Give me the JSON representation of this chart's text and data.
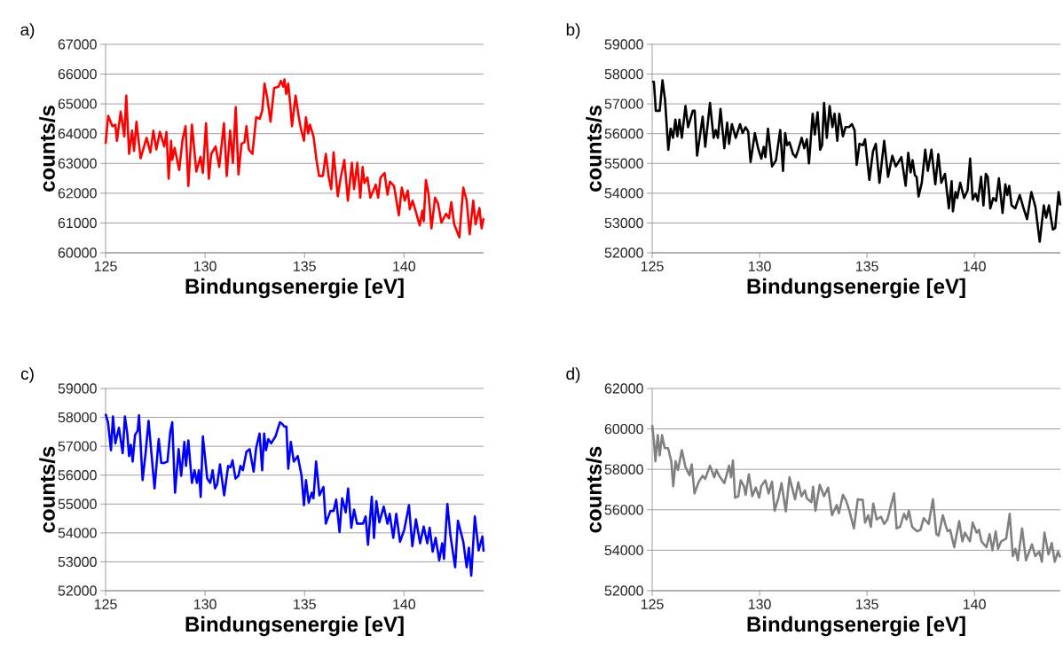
{
  "chart_data": [
    {
      "type": "line",
      "title": "a)",
      "xlabel": "Bindungsenergie [eV]",
      "ylabel": "counts/s",
      "color": "#ff0000",
      "grid": "y",
      "xlim": [
        125,
        144
      ],
      "xticks": [
        125,
        130,
        135,
        140
      ],
      "ylim": [
        60000,
        67000
      ],
      "yticks": [
        60000,
        61000,
        62000,
        63000,
        64000,
        65000,
        66000,
        67000
      ],
      "x": [
        125.0,
        125.13,
        125.34,
        125.49,
        125.57,
        125.76,
        125.94,
        126.04,
        126.18,
        126.33,
        126.43,
        126.55,
        126.76,
        127.06,
        127.25,
        127.4,
        127.55,
        127.73,
        127.95,
        128.06,
        128.17,
        128.29,
        128.35,
        128.47,
        128.7,
        128.87,
        129.02,
        129.16,
        129.34,
        129.56,
        129.77,
        129.89,
        130.05,
        130.19,
        130.31,
        130.53,
        130.71,
        130.95,
        131.09,
        131.26,
        131.4,
        131.54,
        131.68,
        131.83,
        131.98,
        132.08,
        132.2,
        132.38,
        132.57,
        132.75,
        132.88,
        132.99,
        133.12,
        133.29,
        133.47,
        133.69,
        133.81,
        133.93,
        133.99,
        134.08,
        134.18,
        134.28,
        134.37,
        134.55,
        134.7,
        134.79,
        134.97,
        135.07,
        135.18,
        135.27,
        135.45,
        135.6,
        135.73,
        135.92,
        136.07,
        136.22,
        136.34,
        136.46,
        136.67,
        136.82,
        137.0,
        137.18,
        137.38,
        137.49,
        137.65,
        137.8,
        137.92,
        138.01,
        138.16,
        138.31,
        138.58,
        138.7,
        138.82,
        139.02,
        139.17,
        139.29,
        139.5,
        139.74,
        139.89,
        140.04,
        140.19,
        140.29,
        140.43,
        140.58,
        140.79,
        140.92,
        140.99,
        141.1,
        141.23,
        141.38,
        141.56,
        141.71,
        141.88,
        142.11,
        142.26,
        142.38,
        142.52,
        142.78,
        142.98,
        143.15,
        143.3,
        143.48,
        143.6,
        143.79,
        143.9,
        144.0
      ],
      "values": [
        63660,
        64600,
        64250,
        64300,
        63760,
        64740,
        63910,
        65280,
        63320,
        64100,
        63420,
        64400,
        63170,
        63860,
        63370,
        64100,
        63470,
        64060,
        63570,
        64060,
        62490,
        63760,
        63120,
        63520,
        62780,
        63810,
        64250,
        62240,
        64300,
        62730,
        63220,
        62680,
        64350,
        62490,
        63320,
        63570,
        62880,
        64350,
        62580,
        64100,
        63020,
        64890,
        62630,
        63660,
        63710,
        64250,
        63470,
        63320,
        64550,
        64500,
        64790,
        65680,
        65230,
        64400,
        65530,
        65580,
        65770,
        65580,
        65820,
        65330,
        65680,
        64990,
        64250,
        65280,
        64600,
        64250,
        63760,
        64550,
        64010,
        64300,
        63910,
        63120,
        62580,
        62580,
        63320,
        62530,
        62140,
        63370,
        61900,
        62530,
        63120,
        61750,
        63020,
        62140,
        63020,
        61850,
        62880,
        62340,
        62530,
        61850,
        62290,
        61850,
        62530,
        62680,
        61950,
        62390,
        62240,
        61260,
        62190,
        61750,
        62090,
        61460,
        61750,
        61410,
        60920,
        61410,
        61060,
        62440,
        61990,
        60820,
        61850,
        61650,
        61010,
        61310,
        61160,
        61700,
        60960,
        60520,
        62190,
        61750,
        60620,
        61750,
        60960,
        61500,
        60820,
        61160
      ]
    },
    {
      "type": "line",
      "title": "b)",
      "xlabel": "Bindungsenergie [eV]",
      "ylabel": "counts/s",
      "color": "#000000",
      "grid": "y",
      "xlim": [
        125,
        144
      ],
      "xticks": [
        125,
        130,
        135,
        140
      ],
      "ylim": [
        52000,
        59000
      ],
      "yticks": [
        52000,
        53000,
        54000,
        55000,
        56000,
        57000,
        58000,
        59000
      ],
      "x": [
        125.0,
        125.08,
        125.17,
        125.35,
        125.48,
        125.6,
        125.75,
        125.86,
        125.97,
        126.08,
        126.17,
        126.27,
        126.38,
        126.55,
        126.67,
        126.89,
        126.98,
        127.09,
        127.35,
        127.47,
        127.69,
        127.86,
        127.96,
        128.06,
        128.18,
        128.36,
        128.49,
        128.58,
        128.71,
        128.89,
        129.09,
        129.21,
        129.35,
        129.47,
        129.58,
        129.78,
        129.93,
        130.08,
        130.19,
        130.27,
        130.39,
        130.58,
        130.76,
        130.96,
        131.09,
        131.19,
        131.28,
        131.39,
        131.56,
        131.68,
        131.8,
        131.96,
        132.08,
        132.2,
        132.3,
        132.47,
        132.57,
        132.7,
        132.82,
        132.91,
        133.0,
        133.13,
        133.26,
        133.39,
        133.49,
        133.62,
        133.71,
        133.88,
        134.0,
        134.16,
        134.3,
        134.42,
        134.52,
        134.65,
        134.81,
        134.91,
        135.11,
        135.28,
        135.41,
        135.58,
        135.8,
        135.98,
        136.18,
        136.34,
        136.6,
        136.8,
        136.92,
        137.03,
        137.12,
        137.23,
        137.31,
        137.4,
        137.55,
        137.71,
        137.83,
        138.0,
        138.18,
        138.32,
        138.46,
        138.63,
        138.81,
        138.94,
        139.0,
        139.12,
        139.2,
        139.34,
        139.52,
        139.68,
        139.8,
        139.92,
        140.05,
        140.16,
        140.31,
        140.42,
        140.53,
        140.62,
        140.74,
        140.88,
        141.01,
        141.14,
        141.31,
        141.44,
        141.53,
        141.62,
        141.73,
        141.9,
        142.11,
        142.27,
        142.45,
        142.65,
        142.84,
        143.04,
        143.23,
        143.34,
        143.47,
        143.65,
        143.76,
        143.92,
        144.0
      ],
      "values": [
        57740,
        57740,
        56770,
        56770,
        57790,
        57130,
        55460,
        56170,
        55860,
        56470,
        55910,
        56470,
        55860,
        56930,
        56220,
        56770,
        56770,
        55260,
        56570,
        55560,
        57030,
        55860,
        56120,
        55860,
        56830,
        55510,
        56370,
        55660,
        56320,
        55860,
        56320,
        56020,
        56220,
        56070,
        55050,
        56020,
        55510,
        55160,
        55560,
        55210,
        56170,
        54900,
        55100,
        56120,
        54750,
        56020,
        55610,
        55710,
        55310,
        55210,
        55460,
        55860,
        55510,
        55810,
        55000,
        56670,
        55970,
        56720,
        55460,
        55610,
        57030,
        55860,
        56930,
        56220,
        56670,
        55760,
        56670,
        55910,
        56220,
        56220,
        56320,
        56120,
        54950,
        55660,
        55610,
        55810,
        54450,
        55410,
        55660,
        54350,
        55760,
        54550,
        55260,
        54900,
        55210,
        54250,
        55360,
        54700,
        55110,
        54600,
        54550,
        53890,
        54350,
        55460,
        54750,
        55460,
        54300,
        55310,
        54350,
        54650,
        53490,
        54400,
        53390,
        54040,
        53840,
        54350,
        53840,
        54090,
        55160,
        53790,
        53990,
        53740,
        54550,
        53590,
        54650,
        54550,
        53490,
        53840,
        53740,
        54500,
        53340,
        54300,
        53940,
        54250,
        53590,
        53490,
        53940,
        53540,
        53130,
        54040,
        53540,
        52370,
        53590,
        53180,
        53590,
        52780,
        52830,
        54040,
        53590
      ]
    },
    {
      "type": "line",
      "title": "c)",
      "xlabel": "Bindungsenergie [eV]",
      "ylabel": "counts/s",
      "color": "#0000ff",
      "grid": "y",
      "xlim": [
        125,
        144
      ],
      "xticks": [
        125,
        130,
        135,
        140
      ],
      "ylim": [
        52000,
        59000
      ],
      "yticks": [
        52000,
        53000,
        54000,
        55000,
        56000,
        57000,
        58000,
        59000
      ],
      "x": [
        125.0,
        125.12,
        125.27,
        125.37,
        125.49,
        125.67,
        125.86,
        125.97,
        126.09,
        126.18,
        126.27,
        126.36,
        126.48,
        126.61,
        126.68,
        126.86,
        127.01,
        127.16,
        127.46,
        127.67,
        127.8,
        127.94,
        128.11,
        128.25,
        128.35,
        128.49,
        128.67,
        128.8,
        128.96,
        129.04,
        129.16,
        129.34,
        129.47,
        129.59,
        129.69,
        129.78,
        129.89,
        130.11,
        130.26,
        130.38,
        130.5,
        130.61,
        130.75,
        130.96,
        131.16,
        131.28,
        131.38,
        131.53,
        131.68,
        131.78,
        131.9,
        132.08,
        132.24,
        132.44,
        132.57,
        132.74,
        132.87,
        132.97,
        133.06,
        133.18,
        133.32,
        133.54,
        133.76,
        133.87,
        133.99,
        134.09,
        134.18,
        134.31,
        134.46,
        134.66,
        134.85,
        134.97,
        135.07,
        135.21,
        135.36,
        135.45,
        135.58,
        135.75,
        135.95,
        136.07,
        136.3,
        136.46,
        136.59,
        136.76,
        136.89,
        137.07,
        137.19,
        137.35,
        137.49,
        137.64,
        137.94,
        138.07,
        138.19,
        138.38,
        138.49,
        138.61,
        138.76,
        138.98,
        139.17,
        139.28,
        139.46,
        139.61,
        139.8,
        140.02,
        140.25,
        140.42,
        140.6,
        140.81,
        140.99,
        141.17,
        141.29,
        141.44,
        141.59,
        141.77,
        141.92,
        142.01,
        142.18,
        142.33,
        142.57,
        142.71,
        142.98,
        143.15,
        143.26,
        143.38,
        143.56,
        143.75,
        143.94,
        144.0
      ],
      "values": [
        58120,
        57830,
        56860,
        58030,
        57100,
        57640,
        56760,
        58030,
        57440,
        56660,
        57050,
        56470,
        57390,
        57540,
        58070,
        55830,
        56760,
        57880,
        55540,
        57250,
        56420,
        56420,
        56470,
        57490,
        57830,
        55390,
        56900,
        55980,
        57150,
        56320,
        57200,
        55730,
        56170,
        55730,
        56170,
        55250,
        57340,
        55880,
        55730,
        56170,
        55540,
        55690,
        56370,
        55300,
        56320,
        56270,
        56510,
        55880,
        55980,
        56320,
        56170,
        56810,
        56900,
        56120,
        56950,
        57440,
        56170,
        57440,
        56860,
        57250,
        57100,
        57340,
        57830,
        57780,
        57680,
        57680,
        56220,
        57150,
        56470,
        56660,
        55980,
        54960,
        55830,
        55050,
        55390,
        55200,
        56470,
        55300,
        55590,
        54320,
        54760,
        54760,
        55150,
        54030,
        55200,
        54710,
        55540,
        54180,
        54810,
        54320,
        54320,
        54570,
        53590,
        55250,
        53830,
        55100,
        54370,
        54910,
        54320,
        54660,
        53830,
        54660,
        53690,
        54130,
        54960,
        53540,
        54470,
        53640,
        54220,
        53640,
        54180,
        53350,
        53830,
        53050,
        53640,
        53100,
        55000,
        53930,
        52810,
        54420,
        53690,
        52810,
        53490,
        52520,
        54570,
        53390,
        53880,
        53350
      ]
    },
    {
      "type": "line",
      "title": "d)",
      "xlabel": "Bindungsenergie [eV]",
      "ylabel": "counts/s",
      "color": "#808080",
      "grid": "y",
      "xlim": [
        125,
        144
      ],
      "xticks": [
        125,
        130,
        135,
        140
      ],
      "ylim": [
        52000,
        62000
      ],
      "yticks": [
        52000,
        54000,
        56000,
        58000,
        60000,
        62000
      ],
      "x": [
        125.0,
        125.08,
        125.15,
        125.26,
        125.35,
        125.46,
        125.58,
        125.74,
        125.89,
        125.98,
        126.09,
        126.2,
        126.38,
        126.55,
        126.74,
        126.84,
        126.97,
        127.17,
        127.35,
        127.47,
        127.69,
        127.89,
        127.99,
        128.12,
        128.36,
        128.58,
        128.67,
        128.76,
        128.86,
        129.01,
        129.12,
        129.27,
        129.35,
        129.5,
        129.66,
        129.82,
        129.98,
        130.08,
        130.27,
        130.42,
        130.58,
        130.7,
        130.88,
        131.02,
        131.22,
        131.39,
        131.65,
        131.8,
        131.95,
        132.11,
        132.2,
        132.41,
        132.49,
        132.6,
        132.8,
        133.0,
        133.19,
        133.37,
        133.59,
        133.69,
        133.88,
        134.03,
        134.18,
        134.39,
        134.57,
        134.8,
        134.91,
        135.06,
        135.18,
        135.29,
        135.45,
        135.65,
        135.8,
        135.95,
        136.26,
        136.38,
        136.54,
        136.72,
        136.84,
        136.95,
        137.1,
        137.33,
        137.49,
        137.64,
        137.87,
        138.07,
        138.23,
        138.33,
        138.53,
        138.66,
        138.75,
        138.87,
        139.06,
        139.29,
        139.44,
        139.56,
        139.79,
        139.92,
        140.1,
        140.21,
        140.33,
        140.56,
        140.71,
        140.84,
        140.99,
        141.1,
        141.25,
        141.48,
        141.64,
        141.79,
        141.91,
        142.02,
        142.22,
        142.4,
        142.68,
        142.83,
        143.02,
        143.14,
        143.26,
        143.45,
        143.6,
        143.74,
        143.89,
        144.0
      ],
      "values": [
        60200,
        59410,
        58400,
        59690,
        58690,
        59690,
        59050,
        59050,
        58400,
        57170,
        58400,
        57970,
        58950,
        58110,
        57710,
        58250,
        56810,
        57390,
        57680,
        57530,
        58180,
        57610,
        57970,
        57680,
        57320,
        58180,
        57610,
        58430,
        56600,
        56670,
        57460,
        57170,
        56740,
        57750,
        56670,
        57100,
        56600,
        57170,
        57460,
        56810,
        57390,
        55950,
        56600,
        57320,
        55920,
        57610,
        56520,
        57360,
        56670,
        56960,
        56560,
        56380,
        57140,
        55950,
        57240,
        56670,
        57100,
        55730,
        56240,
        55830,
        56740,
        56450,
        55950,
        55080,
        56520,
        56490,
        55370,
        55730,
        55160,
        56310,
        55520,
        55660,
        55300,
        55520,
        56810,
        55080,
        55160,
        55800,
        55520,
        55950,
        55160,
        54940,
        55010,
        55590,
        55300,
        56520,
        54800,
        54720,
        55730,
        55230,
        54940,
        55010,
        54150,
        55440,
        54440,
        54870,
        54440,
        55370,
        54870,
        55010,
        54440,
        54150,
        54800,
        54000,
        54940,
        54070,
        54440,
        54580,
        55800,
        53710,
        54070,
        53500,
        55080,
        53500,
        54290,
        53710,
        53930,
        53430,
        54870,
        53790,
        54360,
        53430,
        53930,
        53640
      ]
    }
  ]
}
